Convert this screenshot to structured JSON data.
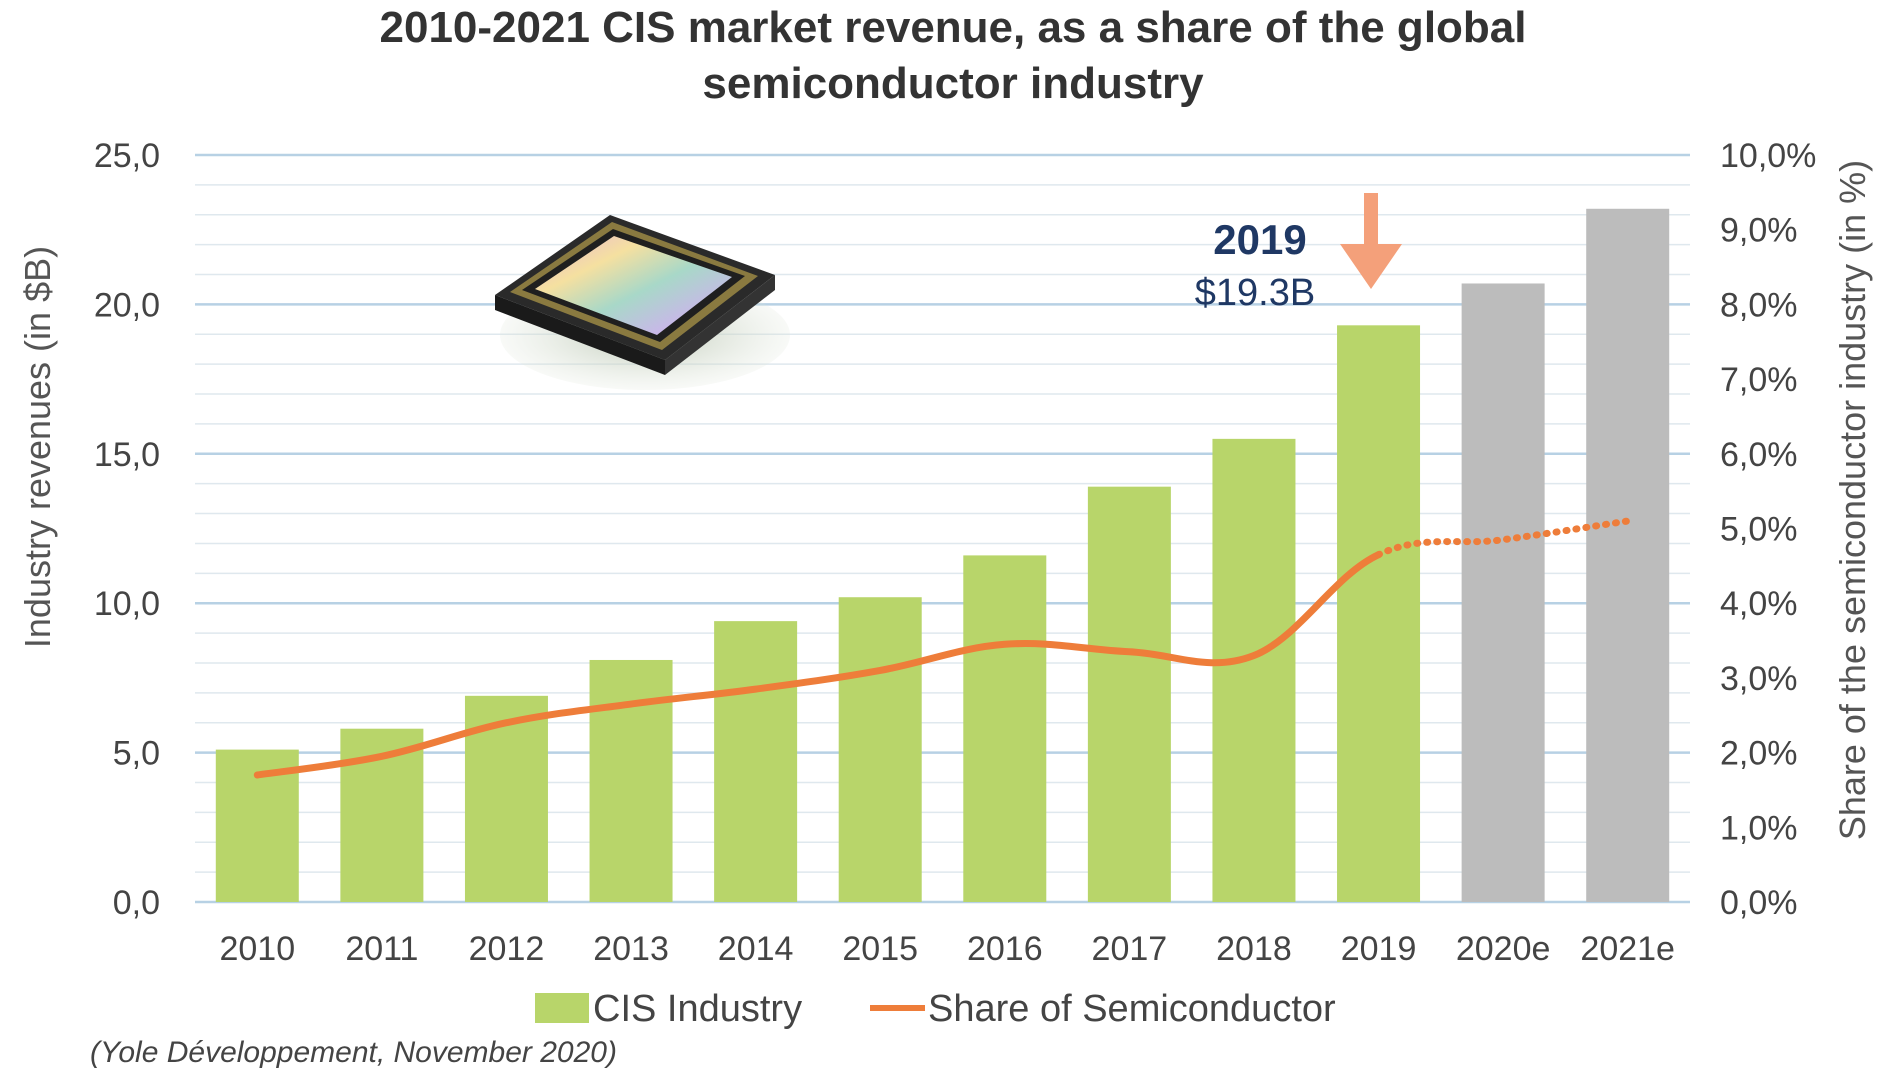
{
  "chart_data": {
    "type": "bar",
    "title_line1": "2010-2021 CIS market revenue, as a share of the global",
    "title_line2": "semiconductor industry",
    "categories": [
      "2010",
      "2011",
      "2012",
      "2013",
      "2014",
      "2015",
      "2016",
      "2017",
      "2018",
      "2019",
      "2020e",
      "2021e"
    ],
    "series": [
      {
        "name": "CIS Industry",
        "kind": "bar",
        "axis": "left",
        "values": [
          5.1,
          5.8,
          6.9,
          8.1,
          9.4,
          10.2,
          11.6,
          13.9,
          15.5,
          19.3,
          20.7,
          23.2
        ],
        "estimated": [
          false,
          false,
          false,
          false,
          false,
          false,
          false,
          false,
          false,
          false,
          true,
          true
        ],
        "color": "#b8d56a",
        "estimate_color": "#bcbcbc"
      },
      {
        "name": "Share of Semiconductor",
        "kind": "line",
        "axis": "right",
        "values": [
          1.7,
          1.95,
          2.4,
          2.65,
          2.85,
          3.1,
          3.45,
          3.35,
          3.3,
          4.65,
          4.85,
          5.1
        ],
        "dashed_from_index": 9,
        "color": "#ee7d3a"
      }
    ],
    "y_left": {
      "label": "Industry revenues (in $B)",
      "ylim": [
        0,
        25
      ],
      "ticks": [
        "0,0",
        "5,0",
        "10,0",
        "15,0",
        "20,0",
        "25,0"
      ]
    },
    "y_right": {
      "label": "Share of the semiconductor industry (in %)",
      "ylim": [
        0,
        10
      ],
      "ticks": [
        "0,0%",
        "1,0%",
        "2,0%",
        "3,0%",
        "4,0%",
        "5,0%",
        "6,0%",
        "7,0%",
        "8,0%",
        "9,0%",
        "10,0%"
      ]
    },
    "grid": true,
    "annotation": {
      "year": "2019",
      "value": "$19.3B",
      "arrow_color": "#f4a07a",
      "text_color": "#1f3864"
    },
    "legend": {
      "position": "bottom",
      "bar_label": "CIS Industry",
      "line_label": "Share of Semiconductor"
    },
    "source": "(Yole Développement, November 2020)"
  }
}
